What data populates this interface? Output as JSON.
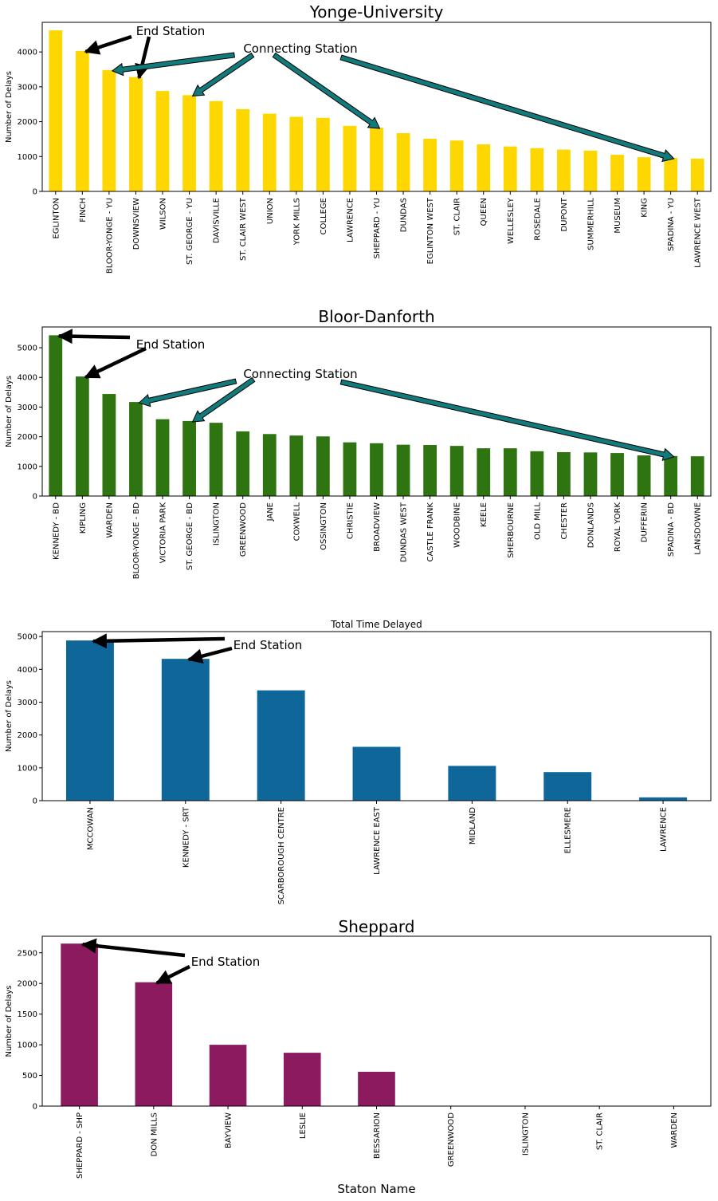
{
  "chart_data": [
    {
      "type": "bar",
      "title": "Yonge-University",
      "xlabel": "",
      "ylabel": "Number of Delays",
      "ylim": [
        0,
        4850
      ],
      "yticks": [
        0,
        1000,
        2000,
        3000,
        4000
      ],
      "color": "#FFD700",
      "categories": [
        "EGLINTON",
        "FINCH",
        "BLOOR-YONGE - YU",
        "DOWNSVIEW",
        "WILSON",
        "ST. GEORGE - YU",
        "DAVISVILLE",
        "ST. CLAIR WEST",
        "UNION",
        "YORK MILLS",
        "COLLEGE",
        "LAWRENCE",
        "SHEPPARD - YU",
        "DUNDAS",
        "EGLINTON WEST",
        "ST. CLAIR",
        "QUEEN",
        "WELLESLEY",
        "ROSEDALE",
        "DUPONT",
        "SUMMERHILL",
        "MUSEUM",
        "KING",
        "SPADINA - YU",
        "LAWRENCE WEST"
      ],
      "values": [
        4620,
        4030,
        3480,
        3280,
        2880,
        2760,
        2590,
        2360,
        2230,
        2140,
        2110,
        1880,
        1830,
        1670,
        1510,
        1460,
        1350,
        1290,
        1240,
        1200,
        1170,
        1050,
        980,
        960,
        940
      ],
      "annotations": [
        {
          "text": "End Station",
          "targets": [
            1,
            3
          ]
        },
        {
          "text": "Connecting Station",
          "targets": [
            2,
            5,
            12,
            23
          ]
        }
      ]
    },
    {
      "type": "bar",
      "title": "Bloor-Danforth",
      "xlabel": "",
      "ylabel": "Number of Delays",
      "ylim": [
        0,
        5700
      ],
      "yticks": [
        0,
        1000,
        2000,
        3000,
        4000,
        5000
      ],
      "color": "#2E7410",
      "categories": [
        "KENNEDY - BD",
        "KIPLING",
        "WARDEN",
        "BLOOR-YONGE - BD",
        "VICTORIA PARK",
        "ST. GEORGE - BD",
        "ISLINGTON",
        "GREENWOOD",
        "JANE",
        "COXWELL",
        "OSSINGTON",
        "CHRISTIE",
        "BROADVIEW",
        "DUNDAS WEST",
        "CASTLE FRANK",
        "WOODBINE",
        "KEELE",
        "SHERBOURNE",
        "OLD MILL",
        "CHESTER",
        "DONLANDS",
        "ROYAL YORK",
        "DUFFERIN",
        "SPADINA - BD",
        "LANSDOWNE"
      ],
      "values": [
        5420,
        4030,
        3440,
        3170,
        2590,
        2530,
        2470,
        2180,
        2090,
        2040,
        2010,
        1810,
        1780,
        1730,
        1720,
        1690,
        1610,
        1610,
        1510,
        1480,
        1470,
        1450,
        1370,
        1350,
        1340
      ],
      "annotations": [
        {
          "text": "End Station",
          "targets": [
            0,
            1
          ]
        },
        {
          "text": "Connecting Station",
          "targets": [
            3,
            5,
            23
          ]
        }
      ]
    },
    {
      "type": "bar",
      "title": "Total Time Delayed",
      "xlabel": "",
      "ylabel": "Number of Delays",
      "ylim": [
        0,
        5150
      ],
      "yticks": [
        0,
        1000,
        2000,
        3000,
        4000,
        5000
      ],
      "color": "#0E6699",
      "categories": [
        "MCCOWAN",
        "KENNEDY - SRT",
        "SCARBOROUGH CENTRE",
        "LAWRENCE EAST",
        "MIDLAND",
        "ELLESMERE",
        "LAWRENCE"
      ],
      "values": [
        4880,
        4320,
        3360,
        1640,
        1060,
        870,
        100
      ],
      "annotations": [
        {
          "text": "End Station",
          "targets": [
            0,
            1
          ]
        }
      ]
    },
    {
      "type": "bar",
      "title": "Sheppard",
      "xlabel": "Staton Name",
      "ylabel": "Number of Delays",
      "ylim": [
        0,
        2770
      ],
      "yticks": [
        0,
        500,
        1000,
        1500,
        2000,
        2500
      ],
      "color": "#8B1A5E",
      "categories": [
        "SHEPPARD - SHP",
        "DON MILLS",
        "BAYVIEW",
        "LESLIE",
        "BESSARION",
        "GREENWOOD",
        "ISLINGTON",
        "ST. CLAIR",
        "WARDEN"
      ],
      "values": [
        2650,
        2020,
        1000,
        870,
        560,
        0,
        0,
        0,
        0
      ],
      "annotations": [
        {
          "text": "End Station",
          "targets": [
            0,
            1
          ]
        }
      ]
    }
  ]
}
